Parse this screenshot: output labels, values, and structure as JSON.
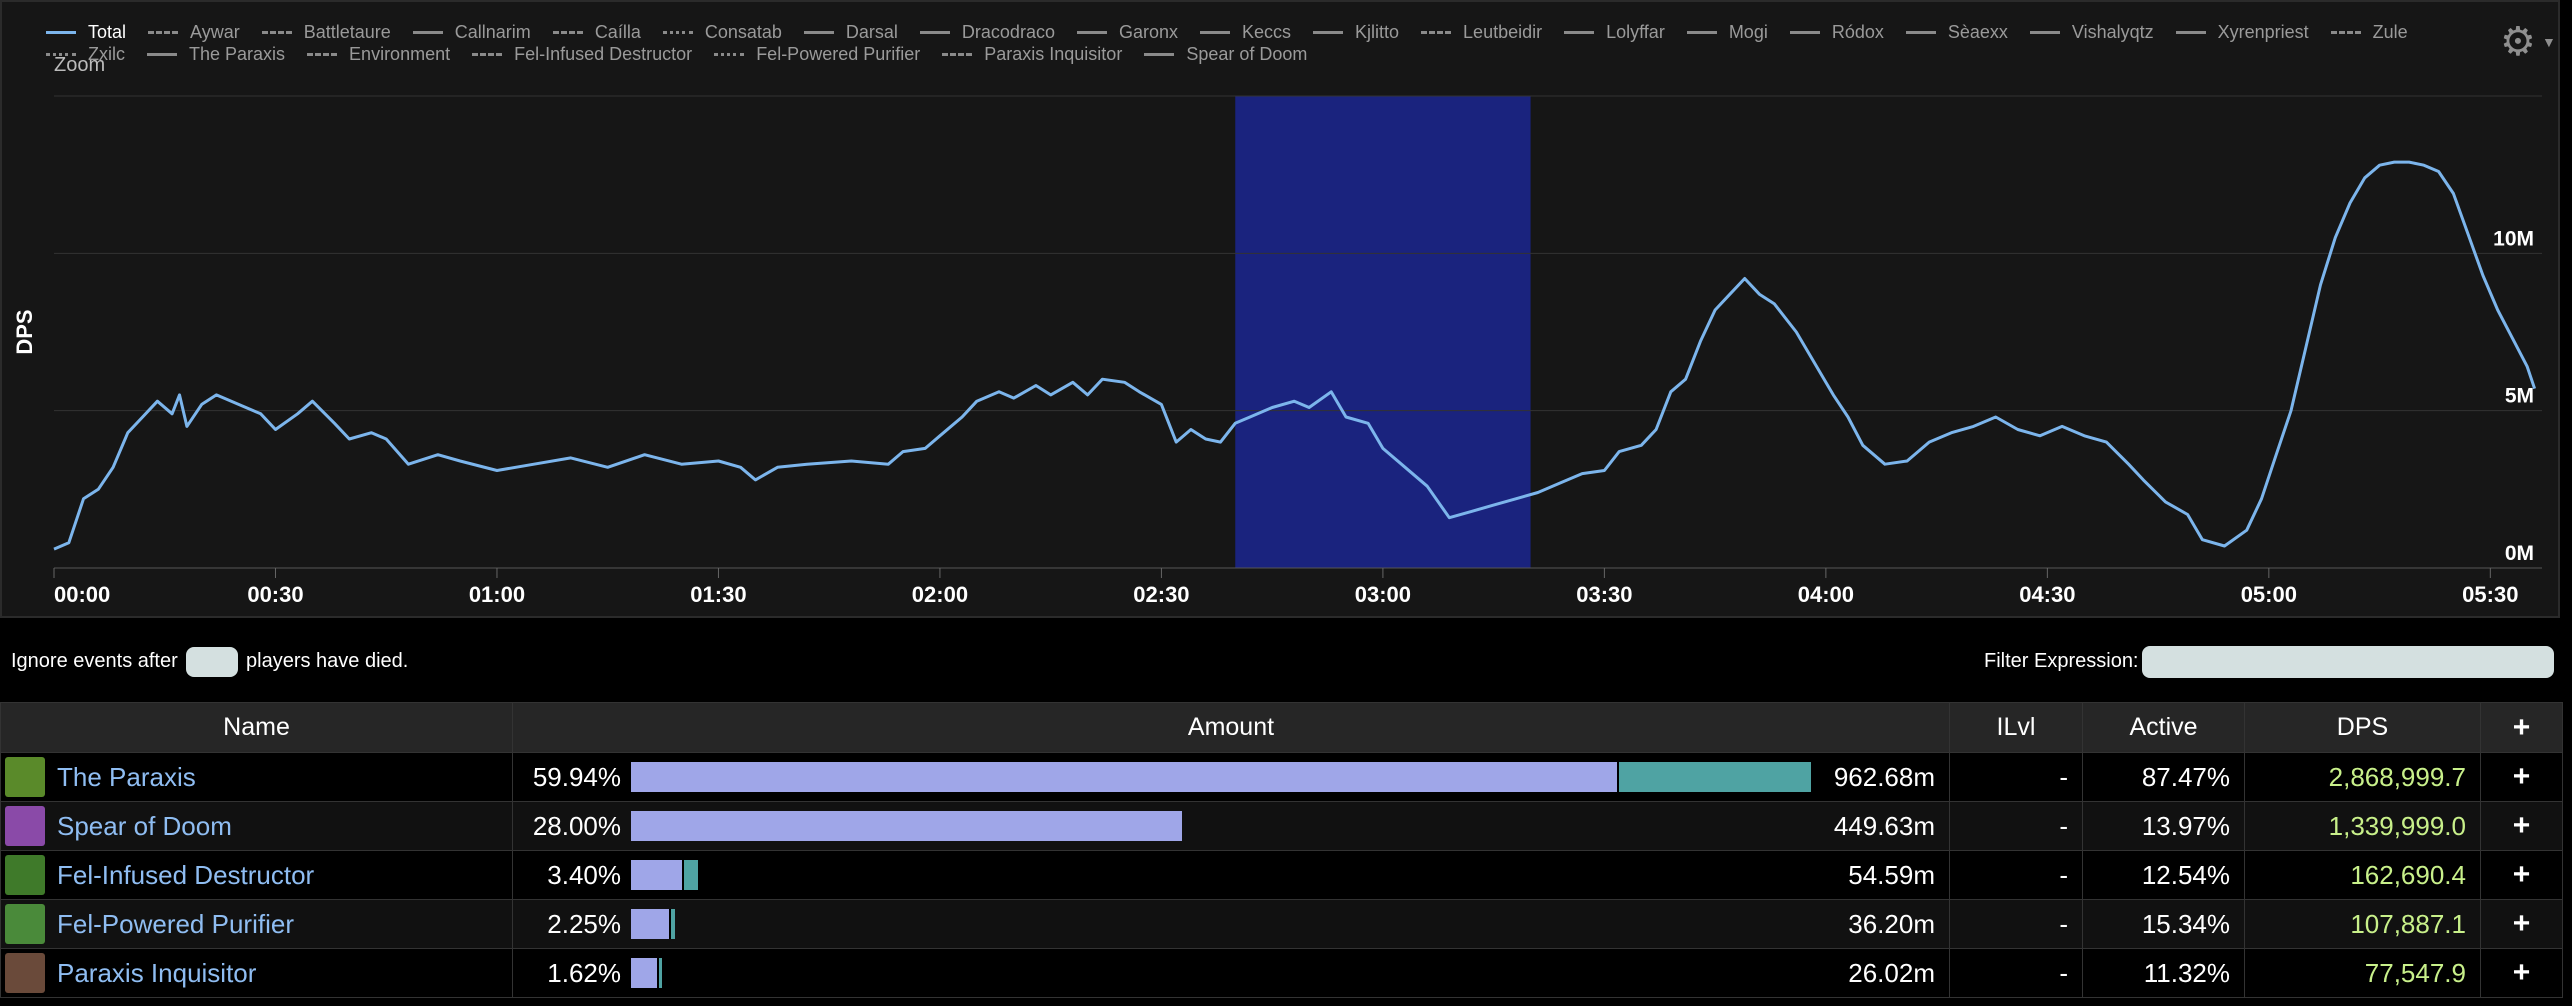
{
  "legend": [
    {
      "label": "Total",
      "style": "solid",
      "active": true
    },
    {
      "label": "Aywar",
      "style": "dashed"
    },
    {
      "label": "Battletaure",
      "style": "dashdot"
    },
    {
      "label": "Callnarim",
      "style": "solid"
    },
    {
      "label": "Caílla",
      "style": "dashed"
    },
    {
      "label": "Consatab",
      "style": "dotted"
    },
    {
      "label": "Darsal",
      "style": "solid"
    },
    {
      "label": "Dracodraco",
      "style": "solid"
    },
    {
      "label": "Garonx",
      "style": "solid"
    },
    {
      "label": "Keccs",
      "style": "solid"
    },
    {
      "label": "Kjlitto",
      "style": "solid"
    },
    {
      "label": "Leutbeidir",
      "style": "dashed"
    },
    {
      "label": "Lolyffar",
      "style": "solid"
    },
    {
      "label": "Mogi",
      "style": "solid"
    },
    {
      "label": "Ródox",
      "style": "solid"
    },
    {
      "label": "Sèaexx",
      "style": "solid"
    },
    {
      "label": "Vishalyqtz",
      "style": "solid"
    },
    {
      "label": "Xyrenpriest",
      "style": "solid"
    },
    {
      "label": "Zule",
      "style": "dashed"
    },
    {
      "label": "Zxilc",
      "style": "dotted"
    },
    {
      "label": "The Paraxis",
      "style": "solid"
    },
    {
      "label": "Environment",
      "style": "dashdot"
    },
    {
      "label": "Fel-Infused Destructor",
      "style": "dashed"
    },
    {
      "label": "Fel-Powered Purifier",
      "style": "dotted"
    },
    {
      "label": "Paraxis Inquisitor",
      "style": "dashdot"
    },
    {
      "label": "Spear of Doom",
      "style": "solid"
    }
  ],
  "zoom_label": "Zoom",
  "gear_icon": "gear-icon",
  "chart_data": {
    "type": "line",
    "ylabel": "DPS",
    "xlabel": "",
    "x_unit": "time (mm:ss)",
    "xlim": [
      "00:00",
      "05:37"
    ],
    "ylim": [
      0,
      15000000
    ],
    "x_ticks": [
      "00:00",
      "00:30",
      "01:00",
      "01:30",
      "02:00",
      "02:30",
      "03:00",
      "03:30",
      "04:00",
      "04:30",
      "05:00",
      "05:30"
    ],
    "y_ticks": [
      {
        "value": 0,
        "label": "0M"
      },
      {
        "value": 5000000,
        "label": "5M"
      },
      {
        "value": 10000000,
        "label": "10M"
      }
    ],
    "grid": true,
    "highlight_band": {
      "from": "02:40",
      "to": "03:20",
      "color": "#1a237e"
    },
    "series": [
      {
        "name": "Total",
        "color": "#7cb5ec",
        "points": [
          [
            "00:00",
            0.6
          ],
          [
            "00:02",
            0.8
          ],
          [
            "00:04",
            2.2
          ],
          [
            "00:06",
            2.5
          ],
          [
            "00:08",
            3.2
          ],
          [
            "00:10",
            4.3
          ],
          [
            "00:12",
            4.8
          ],
          [
            "00:14",
            5.3
          ],
          [
            "00:16",
            4.9
          ],
          [
            "00:17",
            5.5
          ],
          [
            "00:18",
            4.5
          ],
          [
            "00:20",
            5.2
          ],
          [
            "00:22",
            5.5
          ],
          [
            "00:25",
            5.2
          ],
          [
            "00:28",
            4.9
          ],
          [
            "00:30",
            4.4
          ],
          [
            "00:33",
            4.9
          ],
          [
            "00:35",
            5.3
          ],
          [
            "00:38",
            4.6
          ],
          [
            "00:40",
            4.1
          ],
          [
            "00:43",
            4.3
          ],
          [
            "00:45",
            4.1
          ],
          [
            "00:48",
            3.3
          ],
          [
            "00:52",
            3.6
          ],
          [
            "00:55",
            3.4
          ],
          [
            "01:00",
            3.1
          ],
          [
            "01:05",
            3.3
          ],
          [
            "01:10",
            3.5
          ],
          [
            "01:15",
            3.2
          ],
          [
            "01:20",
            3.6
          ],
          [
            "01:25",
            3.3
          ],
          [
            "01:30",
            3.4
          ],
          [
            "01:33",
            3.2
          ],
          [
            "01:35",
            2.8
          ],
          [
            "01:38",
            3.2
          ],
          [
            "01:42",
            3.3
          ],
          [
            "01:48",
            3.4
          ],
          [
            "01:53",
            3.3
          ],
          [
            "01:55",
            3.7
          ],
          [
            "01:58",
            3.8
          ],
          [
            "02:00",
            4.2
          ],
          [
            "02:03",
            4.8
          ],
          [
            "02:05",
            5.3
          ],
          [
            "02:08",
            5.6
          ],
          [
            "02:10",
            5.4
          ],
          [
            "02:13",
            5.8
          ],
          [
            "02:15",
            5.5
          ],
          [
            "02:18",
            5.9
          ],
          [
            "02:20",
            5.5
          ],
          [
            "02:22",
            6.0
          ],
          [
            "02:25",
            5.9
          ],
          [
            "02:27",
            5.6
          ],
          [
            "02:30",
            5.2
          ],
          [
            "02:32",
            4.0
          ],
          [
            "02:34",
            4.4
          ],
          [
            "02:36",
            4.1
          ],
          [
            "02:38",
            4.0
          ],
          [
            "02:40",
            4.6
          ],
          [
            "02:42",
            4.8
          ],
          [
            "02:45",
            5.1
          ],
          [
            "02:48",
            5.3
          ],
          [
            "02:50",
            5.1
          ],
          [
            "02:53",
            5.6
          ],
          [
            "02:55",
            4.8
          ],
          [
            "02:58",
            4.6
          ],
          [
            "03:00",
            3.8
          ],
          [
            "03:03",
            3.2
          ],
          [
            "03:06",
            2.6
          ],
          [
            "03:09",
            1.6
          ],
          [
            "03:12",
            1.8
          ],
          [
            "03:15",
            2.0
          ],
          [
            "03:18",
            2.2
          ],
          [
            "03:21",
            2.4
          ],
          [
            "03:24",
            2.7
          ],
          [
            "03:27",
            3.0
          ],
          [
            "03:30",
            3.1
          ],
          [
            "03:32",
            3.7
          ],
          [
            "03:35",
            3.9
          ],
          [
            "03:37",
            4.4
          ],
          [
            "03:39",
            5.6
          ],
          [
            "03:41",
            6.0
          ],
          [
            "03:43",
            7.2
          ],
          [
            "03:45",
            8.2
          ],
          [
            "03:47",
            8.7
          ],
          [
            "03:49",
            9.2
          ],
          [
            "03:51",
            8.7
          ],
          [
            "03:53",
            8.4
          ],
          [
            "03:56",
            7.5
          ],
          [
            "03:59",
            6.3
          ],
          [
            "04:01",
            5.5
          ],
          [
            "04:03",
            4.8
          ],
          [
            "04:05",
            3.9
          ],
          [
            "04:08",
            3.3
          ],
          [
            "04:11",
            3.4
          ],
          [
            "04:14",
            4.0
          ],
          [
            "04:17",
            4.3
          ],
          [
            "04:20",
            4.5
          ],
          [
            "04:23",
            4.8
          ],
          [
            "04:26",
            4.4
          ],
          [
            "04:29",
            4.2
          ],
          [
            "04:32",
            4.5
          ],
          [
            "04:35",
            4.2
          ],
          [
            "04:38",
            4.0
          ],
          [
            "04:41",
            3.3
          ],
          [
            "04:43",
            2.8
          ],
          [
            "04:46",
            2.1
          ],
          [
            "04:49",
            1.7
          ],
          [
            "04:51",
            0.9
          ],
          [
            "04:54",
            0.7
          ],
          [
            "04:57",
            1.2
          ],
          [
            "04:59",
            2.2
          ],
          [
            "05:01",
            3.6
          ],
          [
            "05:03",
            5.0
          ],
          [
            "05:05",
            7.0
          ],
          [
            "05:07",
            9.0
          ],
          [
            "05:09",
            10.5
          ],
          [
            "05:11",
            11.6
          ],
          [
            "05:13",
            12.4
          ],
          [
            "05:15",
            12.8
          ],
          [
            "05:17",
            12.9
          ],
          [
            "05:19",
            12.9
          ],
          [
            "05:21",
            12.8
          ],
          [
            "05:23",
            12.6
          ],
          [
            "05:25",
            11.9
          ],
          [
            "05:27",
            10.6
          ],
          [
            "05:29",
            9.3
          ],
          [
            "05:31",
            8.2
          ],
          [
            "05:33",
            7.3
          ],
          [
            "05:35",
            6.4
          ],
          [
            "05:36",
            5.7
          ]
        ]
      }
    ]
  },
  "controls": {
    "ignore_prefix": "Ignore events after",
    "players_value": "",
    "ignore_suffix": "players have died.",
    "filter_label": "Filter Expression:",
    "filter_value": ""
  },
  "table": {
    "headers": {
      "name": "Name",
      "amount": "Amount",
      "ilvl": "ILvl",
      "active": "Active",
      "dps": "DPS",
      "plus": "+"
    },
    "rows": [
      {
        "name": "The Paraxis",
        "icon": "paraxis-icon",
        "icon_color": "#5a8a2a",
        "pct": "59.94%",
        "amount": "962.68m",
        "bar": 0.836,
        "bar2": 0.164,
        "ilvl": "-",
        "active": "87.47%",
        "dps": "2,868,999.7"
      },
      {
        "name": "Spear of Doom",
        "icon": "spear-icon",
        "icon_color": "#8a4aa8",
        "pct": "28.00%",
        "amount": "449.63m",
        "bar": 0.467,
        "bar2": 0,
        "ilvl": "-",
        "active": "13.97%",
        "dps": "1,339,999.0"
      },
      {
        "name": "Fel-Infused Destructor",
        "icon": "fel-destructor-icon",
        "icon_color": "#3f7a2a",
        "pct": "3.40%",
        "amount": "54.59m",
        "bar": 0.043,
        "bar2": 0.014,
        "ilvl": "-",
        "active": "12.54%",
        "dps": "162,690.4"
      },
      {
        "name": "Fel-Powered Purifier",
        "icon": "fel-purifier-icon",
        "icon_color": "#4a8a3a",
        "pct": "2.25%",
        "amount": "36.20m",
        "bar": 0.032,
        "bar2": 0.005,
        "ilvl": "-",
        "active": "15.34%",
        "dps": "107,887.1"
      },
      {
        "name": "Paraxis Inquisitor",
        "icon": "inquisitor-icon",
        "icon_color": "#6a4a3a",
        "pct": "1.62%",
        "amount": "26.02m",
        "bar": 0.022,
        "bar2": 0.004,
        "ilvl": "-",
        "active": "11.32%",
        "dps": "77,547.9"
      }
    ]
  }
}
